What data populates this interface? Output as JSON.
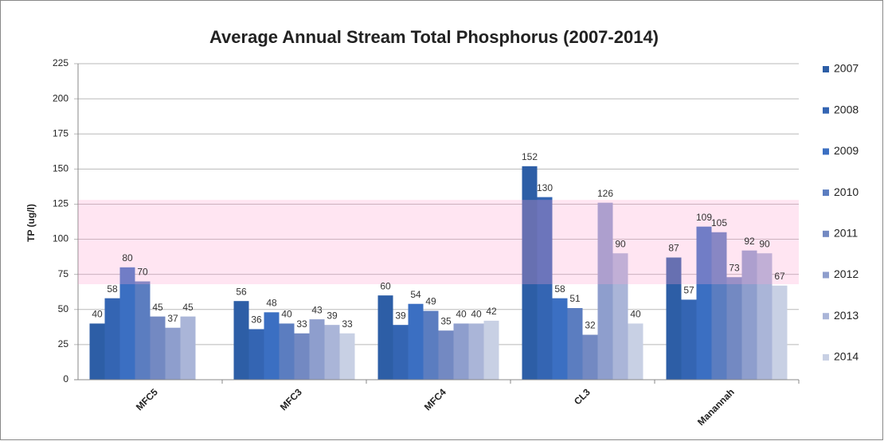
{
  "chart_data": {
    "type": "bar",
    "title": "Average Annual Stream Total Phosphorus (2007-2014)",
    "y_label": "TP (ug/l)",
    "categories": [
      "MFC5",
      "MFC3",
      "MFC4",
      "CL3",
      "Manannah"
    ],
    "series": [
      {
        "name": "2007",
        "color": "#2d5ea6",
        "values": [
          40,
          56,
          60,
          152,
          87
        ]
      },
      {
        "name": "2008",
        "color": "#3465b3",
        "values": [
          58,
          36,
          39,
          130,
          57
        ]
      },
      {
        "name": "2009",
        "color": "#3b6fc2",
        "values": [
          80,
          48,
          54,
          58,
          109
        ]
      },
      {
        "name": "2010",
        "color": "#5b7dc0",
        "values": [
          70,
          40,
          49,
          51,
          105
        ]
      },
      {
        "name": "2011",
        "color": "#7389c2",
        "values": [
          45,
          33,
          35,
          32,
          73
        ]
      },
      {
        "name": "2012",
        "color": "#8e9ecd",
        "values": [
          37,
          43,
          40,
          126,
          92
        ]
      },
      {
        "name": "2013",
        "color": "#aab5d8",
        "values": [
          45,
          39,
          40,
          90,
          90
        ]
      },
      {
        "name": "2014",
        "color": "#c8d0e4",
        "values": [
          null,
          33,
          42,
          40,
          67
        ]
      }
    ],
    "shaded_range": [
      68,
      128
    ],
    "ylim": [
      0,
      225
    ],
    "yticks": [
      0,
      25,
      50,
      75,
      100,
      125,
      150,
      175,
      200,
      225
    ],
    "grid": true,
    "legend": "right"
  }
}
